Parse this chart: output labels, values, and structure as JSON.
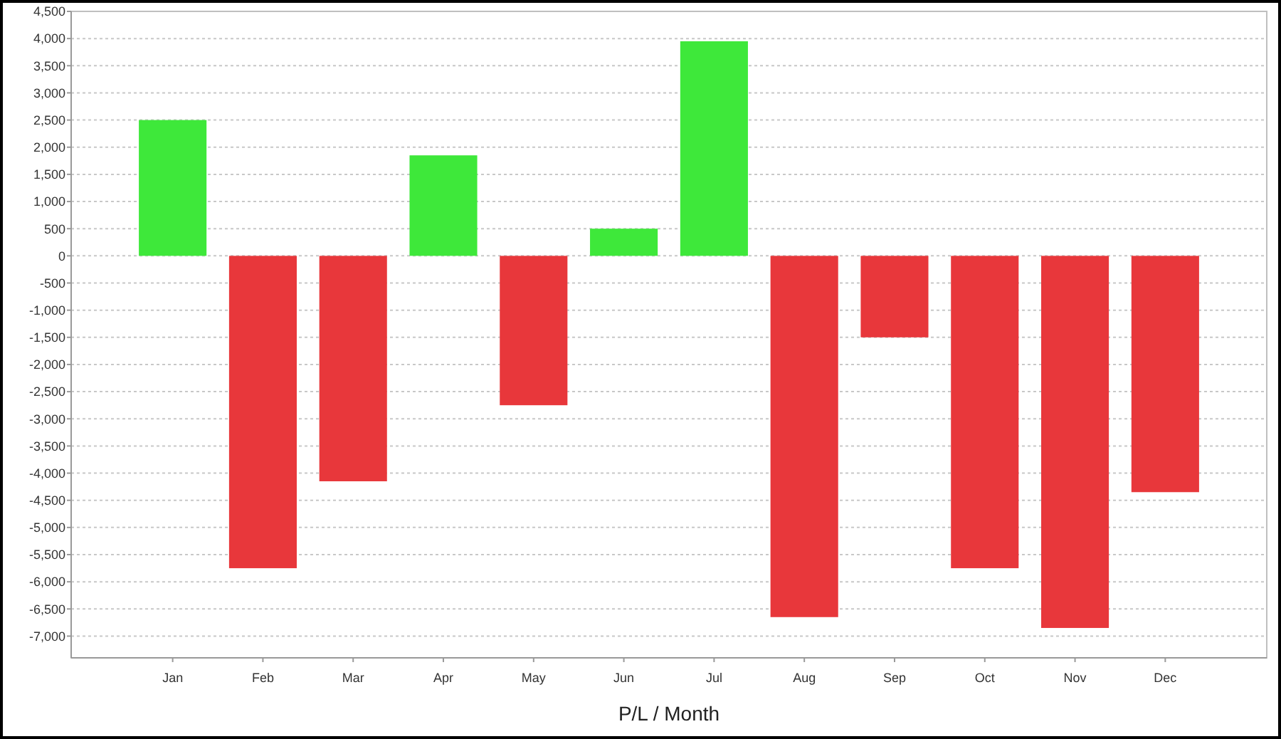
{
  "chart_data": {
    "type": "bar",
    "xlabel": "P/L / Month",
    "categories": [
      "Jan",
      "Feb",
      "Mar",
      "Apr",
      "May",
      "Jun",
      "Jul",
      "Aug",
      "Sep",
      "Oct",
      "Nov",
      "Dec"
    ],
    "values": [
      2500,
      -5750,
      -4150,
      1850,
      -2750,
      500,
      3950,
      -6650,
      -1500,
      -5750,
      -6850,
      -4350
    ],
    "colors": [
      "#3ee83a",
      "#e8373b",
      "#e8373b",
      "#3ee83a",
      "#e8373b",
      "#3ee83a",
      "#3ee83a",
      "#e8373b",
      "#e8373b",
      "#e8373b",
      "#e8373b",
      "#e8373b"
    ],
    "ylim": [
      -7400,
      4500
    ],
    "yticks": [
      {
        "value": 4500,
        "label": "4,500"
      },
      {
        "value": 4000,
        "label": "4,000"
      },
      {
        "value": 3500,
        "label": "3,500"
      },
      {
        "value": 3000,
        "label": "3,000"
      },
      {
        "value": 2500,
        "label": "2,500"
      },
      {
        "value": 2000,
        "label": "2,000"
      },
      {
        "value": 1500,
        "label": "1,500"
      },
      {
        "value": 1000,
        "label": "1,000"
      },
      500,
      0,
      -500,
      {
        "value": -1000,
        "label": "-1,000"
      },
      {
        "value": -1500,
        "label": "-1,500"
      },
      {
        "value": -2000,
        "label": "-2,000"
      },
      {
        "value": -2500,
        "label": "-2,500"
      },
      {
        "value": -3000,
        "label": "-3,000"
      },
      {
        "value": -3500,
        "label": "-3,500"
      },
      {
        "value": -4000,
        "label": "-4,000"
      },
      {
        "value": -4500,
        "label": "-4,500"
      },
      {
        "value": -5000,
        "label": "-5,000"
      },
      {
        "value": -5500,
        "label": "-5,500"
      },
      {
        "value": -6000,
        "label": "-6,000"
      },
      {
        "value": -6500,
        "label": "-6,500"
      },
      {
        "value": -7000,
        "label": "-7,000"
      }
    ],
    "grid": "y"
  }
}
